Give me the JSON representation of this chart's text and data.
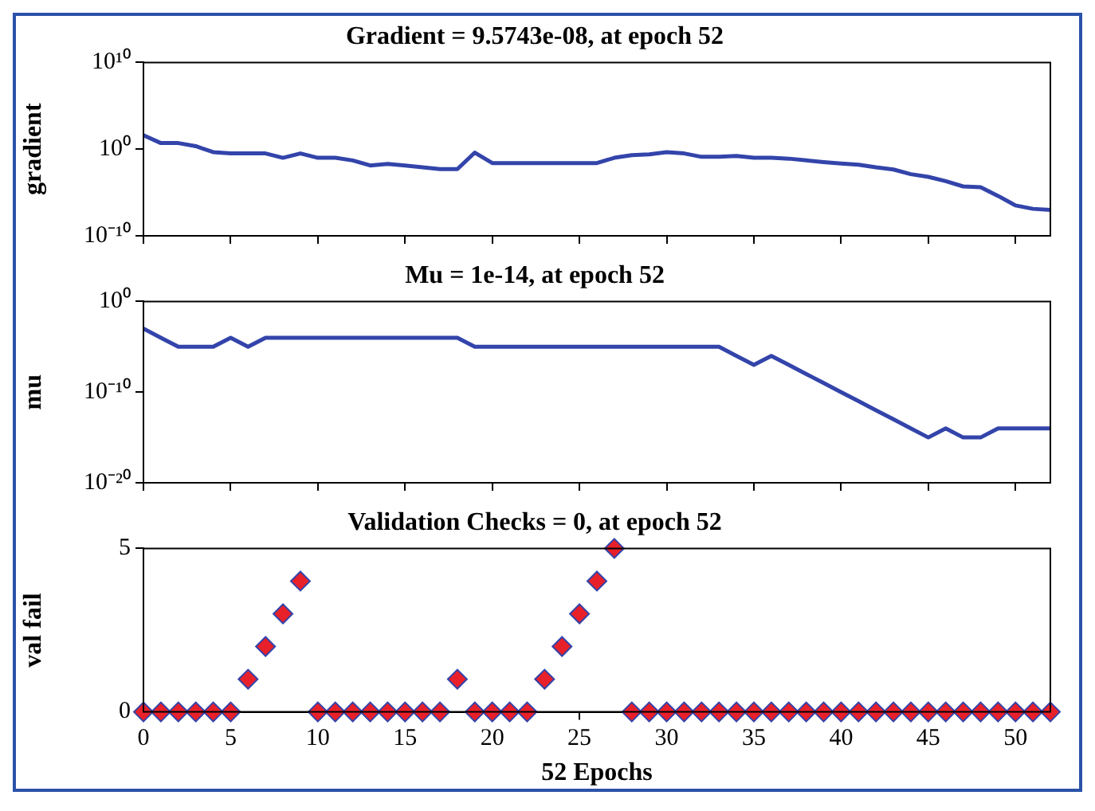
{
  "chart_data": [
    {
      "type": "line",
      "title": "Gradient = 9.5743e-08, at epoch 52",
      "ylabel": "gradient",
      "log": "y",
      "grid": false,
      "legend": false,
      "tick_labels": "y",
      "marker": "none",
      "x": [
        0,
        1,
        2,
        3,
        4,
        5,
        6,
        7,
        8,
        9,
        10,
        11,
        12,
        13,
        14,
        15,
        16,
        17,
        18,
        19,
        20,
        21,
        22,
        23,
        24,
        25,
        26,
        27,
        28,
        29,
        30,
        31,
        32,
        33,
        34,
        35,
        36,
        37,
        38,
        39,
        40,
        41,
        42,
        43,
        44,
        45,
        46,
        47,
        48,
        49,
        50,
        51,
        52
      ],
      "series": [
        {
          "color": "#3344aa",
          "values": [
            40,
            5,
            5,
            2.2,
            0.45,
            0.32,
            0.32,
            0.32,
            0.1,
            0.32,
            0.1,
            0.1,
            0.05,
            0.013,
            0.02,
            0.013,
            0.008,
            0.005,
            0.005,
            0.4,
            0.025,
            0.025,
            0.025,
            0.025,
            0.025,
            0.025,
            0.025,
            0.1,
            0.2,
            0.25,
            0.45,
            0.32,
            0.13,
            0.13,
            0.16,
            0.1,
            0.1,
            0.08,
            0.05,
            0.032,
            0.022,
            0.016,
            0.008,
            0.0045,
            0.0013,
            0.00063,
            0.0002,
            5e-05,
            4e-05,
            4e-06,
            3.2e-07,
            1.3e-07,
            9.5743e-08
          ]
        }
      ],
      "xlim": [
        0,
        52
      ],
      "xticks": [
        0,
        5,
        10,
        15,
        20,
        25,
        30,
        35,
        40,
        45,
        50
      ],
      "ylim": [
        1e-10,
        10000000000.0
      ],
      "yticks": [
        {
          "value": 1e-10,
          "label": "10⁻¹⁰"
        },
        {
          "value": 1,
          "label": "10⁰"
        },
        {
          "value": 10000000000.0,
          "label": "10¹⁰"
        }
      ]
    },
    {
      "type": "line",
      "title": "Mu = 1e-14, at epoch 52",
      "ylabel": "mu",
      "log": "y",
      "grid": false,
      "legend": false,
      "tick_labels": "y",
      "marker": "none",
      "x": [
        0,
        1,
        2,
        3,
        4,
        5,
        6,
        7,
        8,
        9,
        10,
        11,
        12,
        13,
        14,
        15,
        16,
        17,
        18,
        19,
        20,
        21,
        22,
        23,
        24,
        25,
        26,
        27,
        28,
        29,
        30,
        31,
        32,
        33,
        34,
        35,
        36,
        37,
        38,
        39,
        40,
        41,
        42,
        43,
        44,
        45,
        46,
        47,
        48,
        49,
        50,
        51,
        52
      ],
      "series": [
        {
          "color": "#3344aa",
          "values": [
            0.001,
            0.0001,
            1e-05,
            1e-05,
            1e-05,
            0.0001,
            1e-05,
            0.0001,
            0.0001,
            0.0001,
            0.0001,
            0.0001,
            0.0001,
            0.0001,
            0.0001,
            0.0001,
            0.0001,
            0.0001,
            0.0001,
            1e-05,
            1e-05,
            1e-05,
            1e-05,
            1e-05,
            1e-05,
            1e-05,
            1e-05,
            1e-05,
            1e-05,
            1e-05,
            1e-05,
            1e-05,
            1e-05,
            1e-05,
            1e-06,
            1e-07,
            1e-06,
            1e-07,
            1e-08,
            1e-09,
            1e-10,
            1e-11,
            1e-12,
            1e-13,
            1e-14,
            1e-15,
            1e-14,
            1e-15,
            1e-15,
            1e-14,
            1e-14,
            1e-14,
            1e-14
          ]
        }
      ],
      "xlim": [
        0,
        52
      ],
      "xticks": [
        0,
        5,
        10,
        15,
        20,
        25,
        30,
        35,
        40,
        45,
        50
      ],
      "ylim": [
        1e-20,
        1
      ],
      "yticks": [
        {
          "value": 1e-20,
          "label": "10⁻²⁰"
        },
        {
          "value": 1e-10,
          "label": "10⁻¹⁰"
        },
        {
          "value": 1,
          "label": "10⁰"
        }
      ]
    },
    {
      "type": "scatter",
      "title": "Validation Checks = 0, at epoch 52",
      "xlabel": "52 Epochs",
      "ylabel": "val fail",
      "grid": false,
      "legend": false,
      "marker": "diamond",
      "x": [
        0,
        1,
        2,
        3,
        4,
        5,
        6,
        7,
        8,
        9,
        10,
        11,
        12,
        13,
        14,
        15,
        16,
        17,
        18,
        19,
        20,
        21,
        22,
        23,
        24,
        25,
        26,
        27,
        28,
        29,
        30,
        31,
        32,
        33,
        34,
        35,
        36,
        37,
        38,
        39,
        40,
        41,
        42,
        43,
        44,
        45,
        46,
        47,
        48,
        49,
        50,
        51,
        52
      ],
      "series": [
        {
          "color": "#e8202a",
          "values": [
            0,
            0,
            0,
            0,
            0,
            0,
            1,
            2,
            3,
            4,
            0,
            0,
            0,
            0,
            0,
            0,
            0,
            0,
            1,
            0,
            0,
            0,
            0,
            1,
            2,
            3,
            4,
            5,
            0,
            0,
            0,
            0,
            0,
            0,
            0,
            0,
            0,
            0,
            0,
            0,
            0,
            0,
            0,
            0,
            0,
            0,
            0,
            0,
            0,
            0,
            0,
            0,
            0
          ]
        }
      ],
      "xlim": [
        0,
        52
      ],
      "xticks": [
        0,
        5,
        10,
        15,
        20,
        25,
        30,
        35,
        40,
        45,
        50
      ],
      "ylim": [
        0,
        5
      ],
      "yticks": [
        0,
        5
      ]
    }
  ]
}
